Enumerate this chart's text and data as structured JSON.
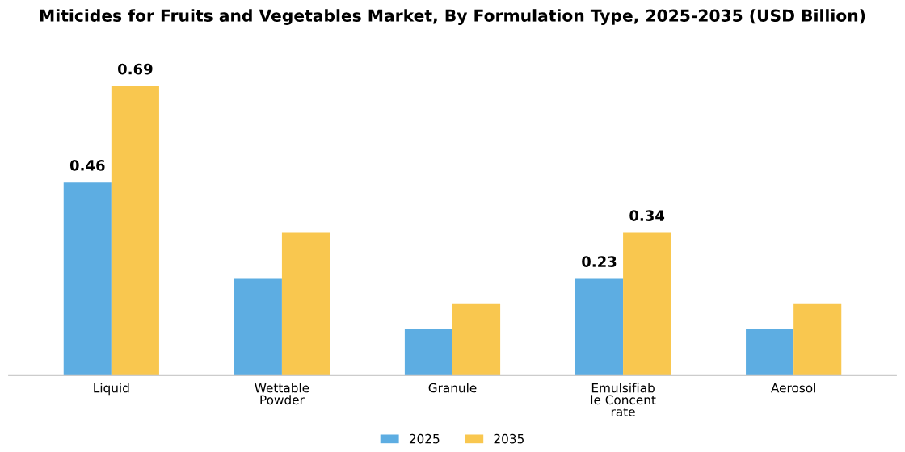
{
  "chart_data": {
    "type": "bar",
    "title": "Miticides for Fruits and Vegetables Market, By Formulation Type, 2025-2035 (USD Billion)",
    "categories": [
      "Liquid",
      "Wettable\nPowder",
      "Granule",
      "Emulsifiab\nle Concent\nrate",
      "Aerosol"
    ],
    "series": [
      {
        "name": "2025",
        "color": "#5dade2",
        "values": [
          0.46,
          0.23,
          0.11,
          0.23,
          0.11
        ],
        "value_labels": [
          "0.46",
          null,
          null,
          "0.23",
          null
        ]
      },
      {
        "name": "2035",
        "color": "#f9c74f",
        "values": [
          0.69,
          0.34,
          0.17,
          0.34,
          0.17
        ],
        "value_labels": [
          "0.69",
          null,
          null,
          "0.34",
          null
        ]
      }
    ],
    "legend": "bottom",
    "grid": false
  }
}
